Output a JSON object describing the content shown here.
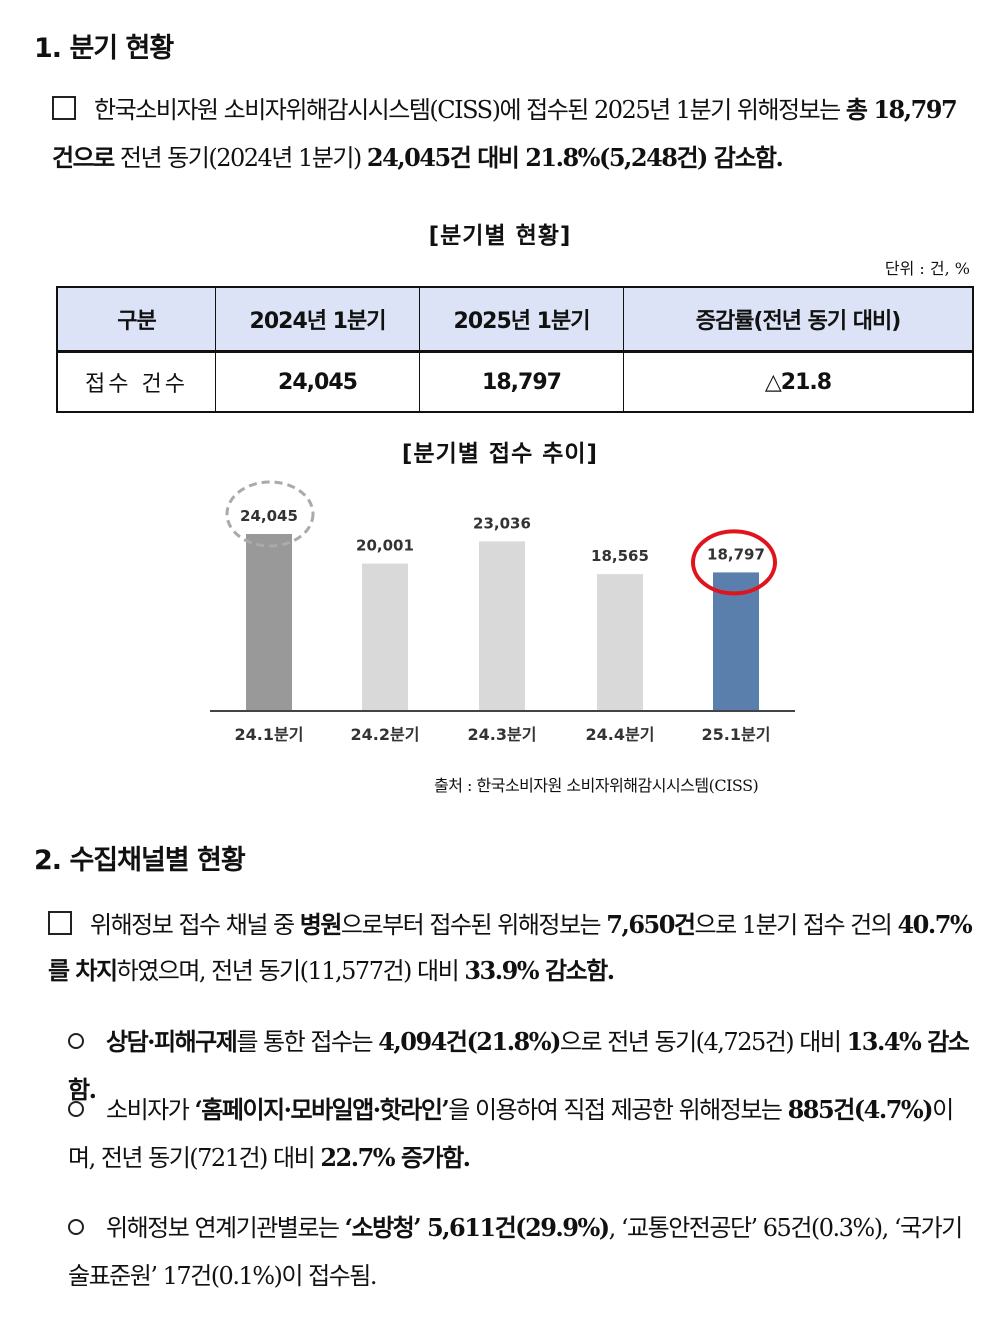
{
  "section1": {
    "title": "1. 분기 현황",
    "para": [
      {
        "t": "한국소비자원 소비자위해감시시스템(CISS)에 접수된 2025년 1분기 위해정보는 ",
        "b": false
      },
      {
        "t": "총 18,797건으로",
        "b": true
      },
      {
        "t": " 전년 동기(2024년 1분기) ",
        "b": false
      },
      {
        "t": "24,045건 대비 21.8%(5,248건) 감소함.",
        "b": true
      }
    ],
    "table_caption": "[분기별 현황]",
    "unit": "단위 : 건, %",
    "table": {
      "headers": [
        "구분",
        "2024년 1분기",
        "2025년 1분기",
        "증감률(전년 동기 대비)"
      ],
      "row": [
        "접수 건수",
        "24,045",
        "18,797",
        "△21.8"
      ]
    },
    "chart_caption": "[분기별 접수 추이]",
    "source": "출처 : 한국소비자원 소비자위해감시시스템(CISS)"
  },
  "chart_data": {
    "type": "bar",
    "categories": [
      "24.1분기",
      "24.2분기",
      "24.3분기",
      "24.4분기",
      "25.1분기"
    ],
    "values": [
      24045,
      20001,
      23036,
      18565,
      18797
    ],
    "labels": [
      "24,045",
      "20,001",
      "23,036",
      "18,565",
      "18,797"
    ],
    "colors": [
      "#999999",
      "#d9d9d9",
      "#d9d9d9",
      "#d9d9d9",
      "#5b7fad"
    ],
    "highlights": {
      "24.1분기": "dashed-gray-circle",
      "25.1분기": "red-circle"
    },
    "ylim": [
      0,
      26000
    ]
  },
  "section2": {
    "title": "2. 수집채널별 현황",
    "para": [
      {
        "t": "위해정보 접수 채널 중 ",
        "b": false
      },
      {
        "t": "병원",
        "b": true
      },
      {
        "t": "으로부터 접수된 위해정보는 ",
        "b": false
      },
      {
        "t": "7,650건",
        "b": true
      },
      {
        "t": "으로 1분기 접수 건의 ",
        "b": false
      },
      {
        "t": "40.7%를 차지",
        "b": true
      },
      {
        "t": "하였으며, 전년 동기(11,577건) 대비 ",
        "b": false
      },
      {
        "t": "33.9% 감소함.",
        "b": true
      }
    ],
    "bullets": [
      [
        {
          "t": "상담·피해구제",
          "b": true
        },
        {
          "t": "를 통한 접수는 ",
          "b": false
        },
        {
          "t": "4,094건(21.8%)",
          "b": true
        },
        {
          "t": "으로 전년 동기(4,725건) 대비 ",
          "b": false
        },
        {
          "t": "13.4% 감소함.",
          "b": true
        }
      ],
      [
        {
          "t": "소비자가 ",
          "b": false
        },
        {
          "t": "‘홈페이지·모바일앱·핫라인’",
          "b": true
        },
        {
          "t": "을 이용하여 직접 제공한 위해정보는 ",
          "b": false
        },
        {
          "t": "885건(4.7%)",
          "b": true
        },
        {
          "t": "이며, 전년 동기(721건) 대비 ",
          "b": false
        },
        {
          "t": "22.7% 증가함.",
          "b": true
        }
      ],
      [
        {
          "t": "위해정보 연계기관별로는 ",
          "b": false
        },
        {
          "t": "‘소방청’ 5,611건(29.9%)",
          "b": true
        },
        {
          "t": ", ‘교통안전공단’ 65건(0.3%), ‘국가기술표준원’ 17건(0.1%)이 접수됨.",
          "b": false
        }
      ]
    ]
  }
}
